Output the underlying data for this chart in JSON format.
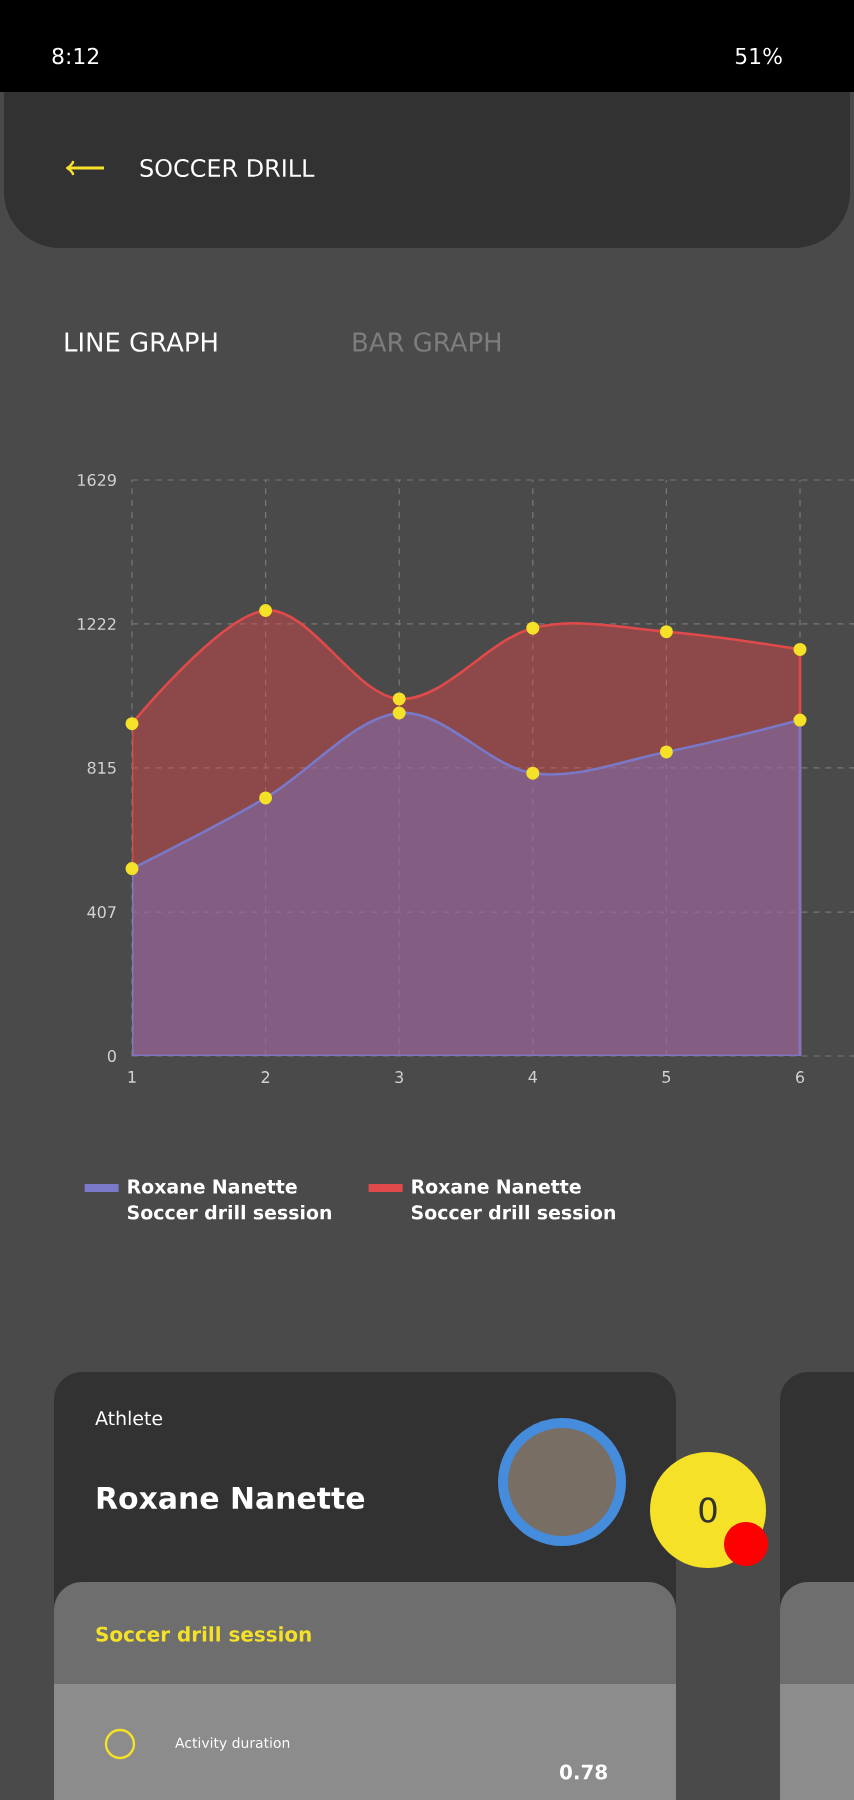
{
  "chart_data": {
    "type": "area",
    "title": "SOCCER DRILL",
    "subtitle": "LINE GRAPH",
    "categories": [
      "1",
      "2",
      "3",
      "4",
      "5",
      "6"
    ],
    "series": [
      {
        "name": "Roxane Nanette Soccer drill session",
        "color": "#7a78c8",
        "values": [
          530,
          730,
          970,
          800,
          860,
          950
        ]
      },
      {
        "name": "Roxane Nanette Soccer drill session",
        "color": "#e04a4a",
        "values": [
          940,
          1260,
          1010,
          1210,
          1200,
          1150
        ]
      }
    ],
    "ylim": [
      0,
      1629
    ],
    "yticks": [
      0,
      407,
      815,
      1222,
      1629
    ],
    "grid": true,
    "marker": "circle",
    "legend": "bottom",
    "annotations": [
      "8:12",
      "51%",
      "BAR GRAPH",
      "Athlete",
      "Roxane Nanette",
      "0",
      "Soccer drill session",
      "Activity duration",
      "0.78"
    ]
  }
}
